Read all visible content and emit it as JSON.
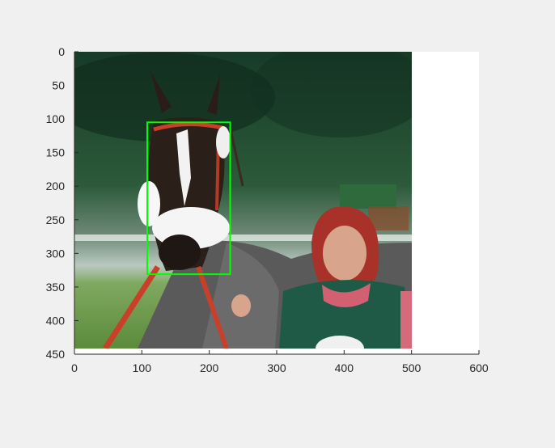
{
  "chart_data": {
    "type": "image",
    "xlim": [
      0,
      600
    ],
    "ylim": [
      450,
      0
    ],
    "y_axis_direction": "reversed",
    "xticks": [
      0,
      100,
      200,
      300,
      400,
      500,
      600
    ],
    "yticks": [
      0,
      50,
      100,
      150,
      200,
      250,
      300,
      350,
      400,
      450
    ],
    "image_extent": {
      "x": [
        0,
        500
      ],
      "y": [
        0,
        440
      ]
    },
    "image_content": "photo of a dark bay horse wearing a white sheepskin noseband, led by a red-haired woman in a green vest",
    "annotations": [
      {
        "type": "bounding-box",
        "x": [
          108,
          231
        ],
        "y": [
          105,
          331
        ],
        "color": "#00ff00"
      }
    ],
    "grid": false,
    "background": "#f0f0f0",
    "axes_color": "#262626"
  }
}
